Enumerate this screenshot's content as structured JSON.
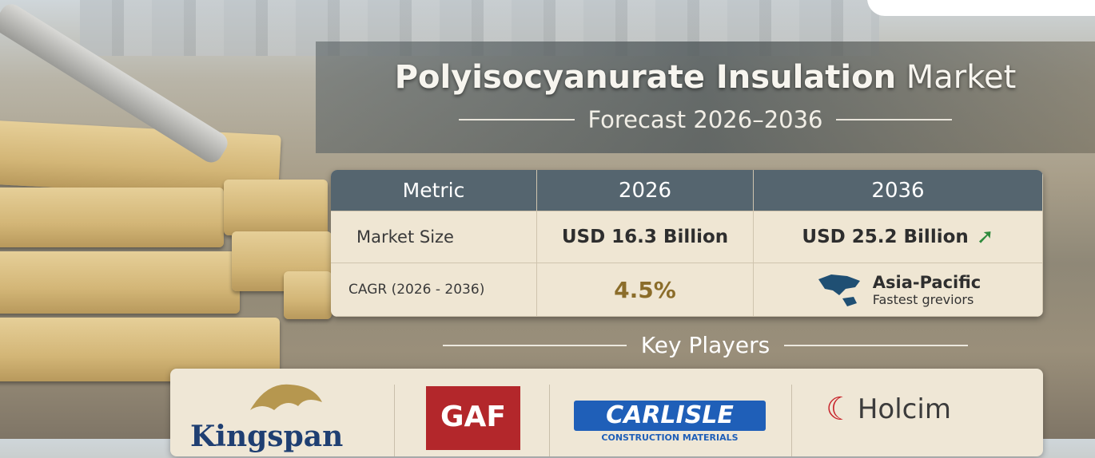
{
  "header": {
    "title_bold": "Polyisocyanurate Insulation",
    "title_light": "Market",
    "subtitle": "Forecast 2026–2036"
  },
  "table": {
    "headers": [
      "Metric",
      "2026",
      "2036"
    ],
    "rows": [
      {
        "metric": "Market Size",
        "v2026": "USD 16.3 Billion",
        "v2036": "USD 25.2 Billion",
        "icon": "up-arrow-icon"
      },
      {
        "metric": "CAGR (2026 - 2036)",
        "v2026": "4.5%",
        "region": "Asia-Pacific",
        "region_note": "Fastest greviors",
        "icon": "asia-pacific-map-icon"
      }
    ]
  },
  "key_players": {
    "heading": "Key Players",
    "logos": [
      "Kingspan",
      "GAF",
      "CARLISLE",
      "CONSTRUCTION MATERIALS",
      "Holcim"
    ]
  },
  "colors": {
    "table_header": "#55656f",
    "cagr": "#8b6d2a",
    "arrow": "#2e8a3c",
    "gaf": "#b3272b",
    "carlisle": "#1f5fb8",
    "kingspan": "#1f3f72"
  }
}
